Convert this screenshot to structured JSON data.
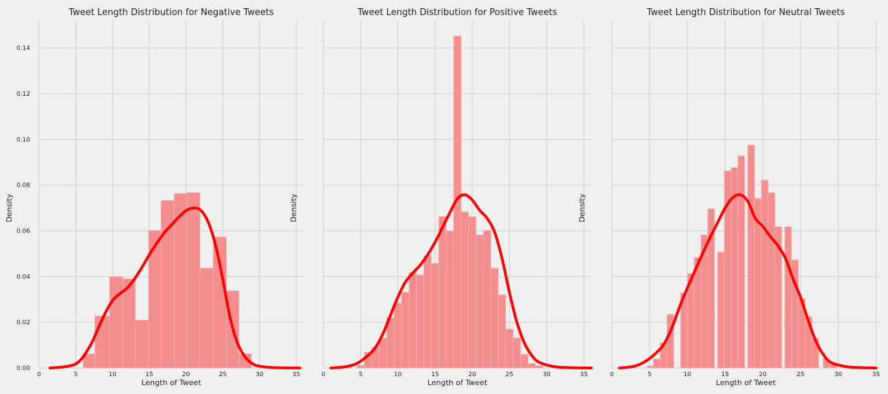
{
  "chart_data": [
    {
      "type": "bar",
      "title": "Tweet Length Distribution for Negative Tweets",
      "xlabel": "Length of Tweet",
      "ylabel": "Density",
      "xlim": [
        0,
        36
      ],
      "ylim": [
        0,
        0.152
      ],
      "xticks": [
        0,
        5,
        10,
        15,
        20,
        25,
        30,
        35
      ],
      "yticks": [
        0.0,
        0.02,
        0.04,
        0.06,
        0.08,
        0.1,
        0.12,
        0.14
      ],
      "ytick_labels": [
        "0.00",
        "0.02",
        "0.04",
        "0.06",
        "0.08",
        "0.10",
        "0.12",
        "0.14"
      ],
      "show_y_labels": true,
      "grid": true,
      "bar_color": "#f28e8e",
      "kde_color": "#ff0000",
      "bins": [
        {
          "x0": 6,
          "x1": 7.6,
          "value": 0.0062
        },
        {
          "x0": 7.6,
          "x1": 9.6,
          "value": 0.0228
        },
        {
          "x0": 9.6,
          "x1": 11.4,
          "value": 0.04
        },
        {
          "x0": 11.4,
          "x1": 13.1,
          "value": 0.039
        },
        {
          "x0": 13.1,
          "x1": 14.9,
          "value": 0.021
        },
        {
          "x0": 14.9,
          "x1": 16.6,
          "value": 0.0602
        },
        {
          "x0": 16.6,
          "x1": 18.4,
          "value": 0.0733
        },
        {
          "x0": 18.4,
          "x1": 20.1,
          "value": 0.0763
        },
        {
          "x0": 20.1,
          "x1": 21.9,
          "value": 0.0767
        },
        {
          "x0": 21.9,
          "x1": 23.7,
          "value": 0.0437
        },
        {
          "x0": 23.7,
          "x1": 25.5,
          "value": 0.0573
        },
        {
          "x0": 25.5,
          "x1": 27.2,
          "value": 0.0338
        },
        {
          "x0": 27.2,
          "x1": 28.9,
          "value": 0.0062
        }
      ],
      "kde": {
        "x": [
          1.5,
          4,
          5.5,
          7,
          8,
          9,
          10,
          11,
          12,
          13,
          14,
          15,
          16,
          17,
          18,
          19,
          20,
          21,
          22,
          23,
          24,
          25,
          26,
          27,
          28,
          29,
          30,
          32,
          35.5
        ],
        "y": [
          0.0,
          0.0008,
          0.003,
          0.01,
          0.017,
          0.024,
          0.0295,
          0.0325,
          0.035,
          0.039,
          0.044,
          0.0495,
          0.0545,
          0.059,
          0.0625,
          0.066,
          0.0688,
          0.07,
          0.069,
          0.064,
          0.054,
          0.039,
          0.022,
          0.011,
          0.005,
          0.002,
          0.0008,
          0.0002,
          0.0
        ]
      }
    },
    {
      "type": "bar",
      "title": "Tweet Length Distribution for Positive Tweets",
      "xlabel": "Length of Tweet",
      "ylabel": "Density",
      "xlim": [
        0,
        36
      ],
      "ylim": [
        0,
        0.152
      ],
      "xticks": [
        0,
        5,
        10,
        15,
        20,
        25,
        30,
        35
      ],
      "yticks": [
        0.0,
        0.02,
        0.04,
        0.06,
        0.08,
        0.1,
        0.12,
        0.14
      ],
      "ytick_labels": [
        "",
        "",
        "",
        "",
        "",
        "",
        "",
        ""
      ],
      "show_y_labels": false,
      "grid": true,
      "bar_color": "#f28e8e",
      "kde_color": "#ff0000",
      "bins": [
        {
          "x0": 4.5,
          "x1": 5.5,
          "value": 0.0012
        },
        {
          "x0": 5.5,
          "x1": 6.5,
          "value": 0.007
        },
        {
          "x0": 6.5,
          "x1": 7.5,
          "value": 0.009
        },
        {
          "x0": 7.5,
          "x1": 8.5,
          "value": 0.013
        },
        {
          "x0": 8.5,
          "x1": 9.5,
          "value": 0.022
        },
        {
          "x0": 9.5,
          "x1": 10.5,
          "value": 0.0285
        },
        {
          "x0": 10.5,
          "x1": 11.5,
          "value": 0.0332
        },
        {
          "x0": 11.5,
          "x1": 12.5,
          "value": 0.0418
        },
        {
          "x0": 12.5,
          "x1": 13.5,
          "value": 0.0407
        },
        {
          "x0": 13.5,
          "x1": 14.5,
          "value": 0.0492
        },
        {
          "x0": 14.5,
          "x1": 15.5,
          "value": 0.0458
        },
        {
          "x0": 15.5,
          "x1": 16.5,
          "value": 0.0662
        },
        {
          "x0": 16.5,
          "x1": 17.5,
          "value": 0.06
        },
        {
          "x0": 17.5,
          "x1": 18.5,
          "value": 0.1453
        },
        {
          "x0": 18.5,
          "x1": 19.5,
          "value": 0.0683
        },
        {
          "x0": 19.5,
          "x1": 20.5,
          "value": 0.0662
        },
        {
          "x0": 20.5,
          "x1": 21.5,
          "value": 0.0582
        },
        {
          "x0": 21.5,
          "x1": 22.5,
          "value": 0.0602
        },
        {
          "x0": 22.5,
          "x1": 23.5,
          "value": 0.0437
        },
        {
          "x0": 23.5,
          "x1": 24.5,
          "value": 0.032
        },
        {
          "x0": 24.5,
          "x1": 25.5,
          "value": 0.017
        },
        {
          "x0": 25.5,
          "x1": 26.5,
          "value": 0.0132
        },
        {
          "x0": 26.5,
          "x1": 27.5,
          "value": 0.006
        },
        {
          "x0": 27.5,
          "x1": 28.5,
          "value": 0.002
        },
        {
          "x0": 28.5,
          "x1": 29.5,
          "value": 0.001
        }
      ],
      "kde": {
        "x": [
          1,
          3,
          4.5,
          6,
          7,
          8,
          9,
          10,
          11,
          12,
          13,
          14,
          15,
          16,
          17,
          18,
          19,
          20,
          21,
          22,
          23,
          24,
          25,
          26,
          27,
          28,
          29,
          31,
          33,
          36
        ],
        "y": [
          0.0,
          0.0006,
          0.002,
          0.0055,
          0.009,
          0.015,
          0.023,
          0.031,
          0.0375,
          0.0415,
          0.045,
          0.0495,
          0.055,
          0.0615,
          0.068,
          0.074,
          0.0758,
          0.0735,
          0.069,
          0.0655,
          0.0595,
          0.048,
          0.033,
          0.02,
          0.011,
          0.0055,
          0.0025,
          0.0006,
          0.0002,
          0.0
        ]
      }
    },
    {
      "type": "bar",
      "title": "Tweet Length Distribution for Neutral Tweets",
      "xlabel": "Length of Tweet",
      "ylabel": "Density",
      "xlim": [
        0,
        35.5
      ],
      "ylim": [
        0,
        0.152
      ],
      "xticks": [
        0,
        5,
        10,
        15,
        20,
        25,
        30,
        35
      ],
      "yticks": [
        0.0,
        0.02,
        0.04,
        0.06,
        0.08,
        0.1,
        0.12,
        0.14
      ],
      "ytick_labels": [
        "",
        "",
        "",
        "",
        "",
        "",
        "",
        ""
      ],
      "show_y_labels": false,
      "grid": true,
      "bar_color": "#f28e8e",
      "kde_color": "#ff0000",
      "bins": [
        {
          "x0": 4.7,
          "x1": 5.5,
          "value": 0.001
        },
        {
          "x0": 5.5,
          "x1": 6.4,
          "value": 0.004
        },
        {
          "x0": 6.4,
          "x1": 7.3,
          "value": 0.011
        },
        {
          "x0": 7.3,
          "x1": 8.2,
          "value": 0.0235
        },
        {
          "x0": 9.1,
          "x1": 10.0,
          "value": 0.0328
        },
        {
          "x0": 10.0,
          "x1": 10.9,
          "value": 0.0413
        },
        {
          "x0": 10.9,
          "x1": 11.8,
          "value": 0.0483
        },
        {
          "x0": 11.8,
          "x1": 12.7,
          "value": 0.0582
        },
        {
          "x0": 12.7,
          "x1": 13.6,
          "value": 0.0697
        },
        {
          "x0": 14.0,
          "x1": 14.9,
          "value": 0.0508
        },
        {
          "x0": 14.9,
          "x1": 15.8,
          "value": 0.0862
        },
        {
          "x0": 15.8,
          "x1": 16.7,
          "value": 0.0877
        },
        {
          "x0": 16.7,
          "x1": 17.6,
          "value": 0.0928
        },
        {
          "x0": 18.0,
          "x1": 18.9,
          "value": 0.0975
        },
        {
          "x0": 18.9,
          "x1": 19.8,
          "value": 0.0742
        },
        {
          "x0": 19.8,
          "x1": 20.7,
          "value": 0.0822
        },
        {
          "x0": 20.7,
          "x1": 21.6,
          "value": 0.0767
        },
        {
          "x0": 21.6,
          "x1": 22.5,
          "value": 0.0618
        },
        {
          "x0": 22.9,
          "x1": 23.8,
          "value": 0.0618
        },
        {
          "x0": 23.8,
          "x1": 24.7,
          "value": 0.0473
        },
        {
          "x0": 24.7,
          "x1": 25.6,
          "value": 0.0305
        },
        {
          "x0": 25.6,
          "x1": 26.5,
          "value": 0.0225
        },
        {
          "x0": 26.5,
          "x1": 27.4,
          "value": 0.013
        },
        {
          "x0": 28.0,
          "x1": 28.9,
          "value": 0.004
        },
        {
          "x0": 28.9,
          "x1": 29.8,
          "value": 0.002
        }
      ],
      "kde": {
        "x": [
          1,
          3,
          4.5,
          6,
          7,
          8,
          9,
          10,
          11,
          12,
          13,
          14,
          15,
          16,
          17,
          18,
          19,
          20,
          21,
          22,
          23,
          24,
          25,
          26,
          27,
          28,
          29,
          31,
          33,
          35
        ],
        "y": [
          0.0,
          0.0008,
          0.003,
          0.007,
          0.011,
          0.018,
          0.027,
          0.035,
          0.0425,
          0.05,
          0.057,
          0.0635,
          0.07,
          0.0745,
          0.0758,
          0.073,
          0.0655,
          0.062,
          0.0575,
          0.0535,
          0.048,
          0.039,
          0.031,
          0.021,
          0.012,
          0.006,
          0.0025,
          0.0006,
          0.0002,
          0.0
        ]
      }
    }
  ]
}
